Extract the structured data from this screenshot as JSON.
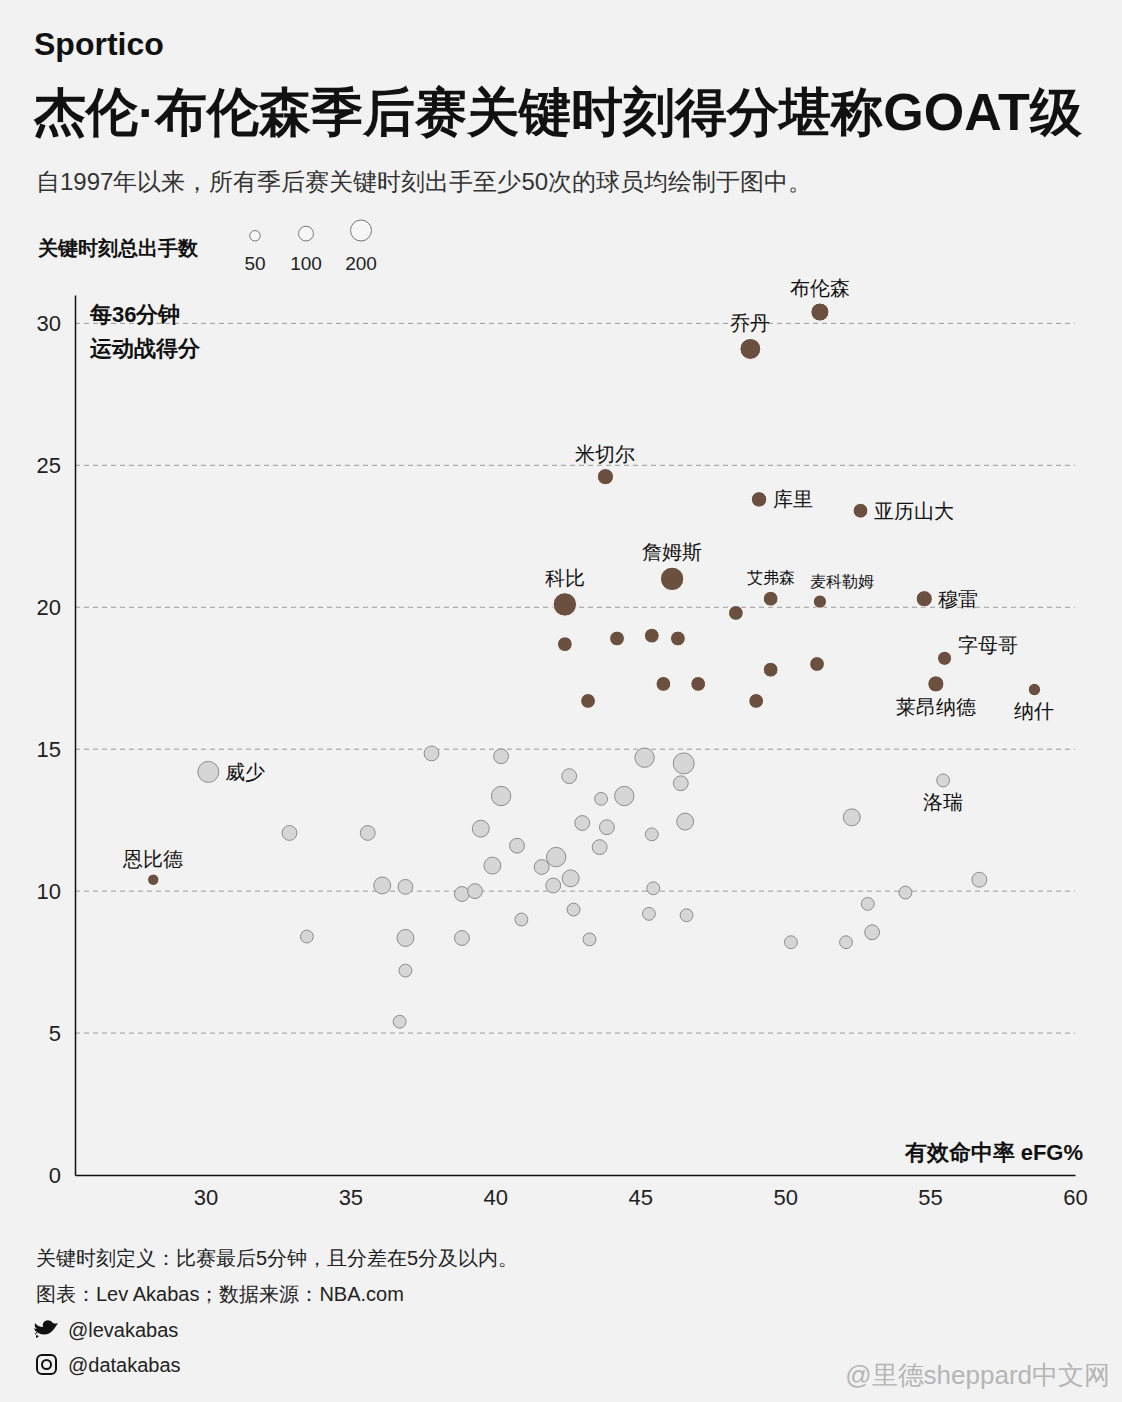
{
  "chart_data": {
    "type": "scatter",
    "brand": "Sportico",
    "title": "杰伦·布伦森季后赛关键时刻得分堪称GOAT级",
    "subtitle": "自1997年以来，所有季后赛关键时刻出手至少50次的球员均绘制于图中。",
    "size_legend": {
      "title": "关键时刻总出手数",
      "values": [
        50,
        100,
        200
      ]
    },
    "y_label": [
      "每36分钟",
      "运动战得分"
    ],
    "x_label": "有效命中率 eFG%",
    "xlim": [
      25.5,
      60
    ],
    "xticks": [
      30,
      35,
      40,
      45,
      50,
      55,
      60
    ],
    "ylim": [
      0,
      31
    ],
    "yticks": [
      0,
      5,
      10,
      15,
      20,
      25,
      30
    ],
    "grid": true,
    "labels": [
      "布伦森",
      "乔丹",
      "米切尔",
      "库里",
      "亚历山大",
      "詹姆斯",
      "科比",
      "艾弗森",
      "麦科勒姆",
      "穆雷",
      "字母哥",
      "莱昂纳德",
      "纳什",
      "恩比德",
      null,
      null,
      null,
      null,
      null,
      null,
      null,
      null,
      null,
      null,
      null,
      "威少",
      "洛瑞",
      null,
      null,
      null,
      null,
      null,
      null,
      null,
      null,
      null,
      null,
      null,
      null,
      null,
      null,
      null,
      null,
      null,
      null,
      null,
      null,
      null,
      null,
      null,
      null,
      null,
      null,
      null,
      null,
      null,
      null,
      null,
      null,
      null,
      null,
      null,
      null,
      null,
      null,
      null
    ],
    "x": [
      51.2,
      48.8,
      43.8,
      49.1,
      52.6,
      46.1,
      42.4,
      49.5,
      51.2,
      54.8,
      55.5,
      55.2,
      58.6,
      28.2,
      48.3,
      42.4,
      44.2,
      45.4,
      46.3,
      45.8,
      47.0,
      49.5,
      51.1,
      49.0,
      43.2,
      30.1,
      55.45,
      32.9,
      35.6,
      33.5,
      36.1,
      36.9,
      36.9,
      36.9,
      36.7,
      37.8,
      38.85,
      39.3,
      38.85,
      40.2,
      40.2,
      39.5,
      39.9,
      40.75,
      40.9,
      41.6,
      42.1,
      42.0,
      42.6,
      42.55,
      43.0,
      43.65,
      43.6,
      43.85,
      42.7,
      43.25,
      44.45,
      45.15,
      45.4,
      45.45,
      45.3,
      46.5,
      46.4,
      46.55,
      46.6,
      50.2,
      52.3,
      52.1,
      52.85,
      53.0,
      54.15,
      56.7
    ],
    "values": [
      30.4,
      29.1,
      24.6,
      23.8,
      23.4,
      21.0,
      20.1,
      20.3,
      20.2,
      20.3,
      18.2,
      17.3,
      17.1,
      10.4,
      19.8,
      18.7,
      18.9,
      19.0,
      18.9,
      17.3,
      17.3,
      17.8,
      18.0,
      16.7,
      16.7,
      14.2,
      13.9,
      12.05,
      12.05,
      8.4,
      10.2,
      10.15,
      8.35,
      7.2,
      5.4,
      14.85,
      9.9,
      10.0,
      8.35,
      14.75,
      13.35,
      12.2,
      10.9,
      11.6,
      9.0,
      10.85,
      11.2,
      10.2,
      10.45,
      14.05,
      12.4,
      13.25,
      11.55,
      12.25,
      9.35,
      8.3,
      13.35,
      14.7,
      12.0,
      10.1,
      9.2,
      14.5,
      13.8,
      12.45,
      9.15,
      8.2,
      12.6,
      8.2,
      9.55,
      8.55,
      9.95,
      10.4
    ],
    "sizes": [
      150,
      200,
      120,
      110,
      100,
      250,
      250,
      100,
      80,
      120,
      90,
      120,
      70,
      60,
      100,
      100,
      100,
      100,
      100,
      100,
      100,
      100,
      100,
      100,
      100,
      200,
      75,
      100,
      100,
      75,
      130,
      100,
      130,
      75,
      75,
      100,
      100,
      100,
      100,
      100,
      170,
      130,
      130,
      100,
      75,
      100,
      170,
      100,
      130,
      100,
      100,
      75,
      100,
      100,
      75,
      75,
      170,
      170,
      75,
      75,
      75,
      200,
      100,
      130,
      75,
      75,
      130,
      75,
      75,
      100,
      75,
      100
    ],
    "colors": [
      "#6b4f3f",
      "#6b4f3f",
      "#6b4f3f",
      "#6b4f3f",
      "#6b4f3f",
      "#6b4f3f",
      "#6b4f3f",
      "#6b4f3f",
      "#6b4f3f",
      "#6b4f3f",
      "#6b4f3f",
      "#6b4f3f",
      "#6b4f3f",
      "#6b4f3f",
      "#6b4f3f",
      "#6b4f3f",
      "#6b4f3f",
      "#6b4f3f",
      "#6b4f3f",
      "#6b4f3f",
      "#6b4f3f",
      "#6b4f3f",
      "#6b4f3f",
      "#6b4f3f",
      "#6b4f3f",
      "#d6d6d6",
      "#d6d6d6",
      "#d6d6d6",
      "#d6d6d6",
      "#d6d6d6",
      "#d6d6d6",
      "#d6d6d6",
      "#d6d6d6",
      "#d6d6d6",
      "#d6d6d6",
      "#d6d6d6",
      "#d6d6d6",
      "#d6d6d6",
      "#d6d6d6",
      "#d6d6d6",
      "#d6d6d6",
      "#d6d6d6",
      "#d6d6d6",
      "#d6d6d6",
      "#d6d6d6",
      "#d6d6d6",
      "#d6d6d6",
      "#d6d6d6",
      "#d6d6d6",
      "#d6d6d6",
      "#d6d6d6",
      "#d6d6d6",
      "#d6d6d6",
      "#d6d6d6",
      "#d6d6d6",
      "#d6d6d6",
      "#d6d6d6",
      "#d6d6d6",
      "#d6d6d6",
      "#d6d6d6",
      "#d6d6d6",
      "#d6d6d6",
      "#d6d6d6",
      "#d6d6d6",
      "#d6d6d6",
      "#d6d6d6",
      "#d6d6d6",
      "#d6d6d6",
      "#d6d6d6",
      "#d6d6d6",
      "#d6d6d6",
      "#d6d6d6"
    ],
    "notes": [
      "关键时刻定义：比赛最后5分钟，且分差在5分及以内。",
      "图表：Lev Akabas；数据来源：NBA.com",
      "@levakabas",
      "@datakabas"
    ],
    "watermark": "@里德sheppard中文网"
  }
}
